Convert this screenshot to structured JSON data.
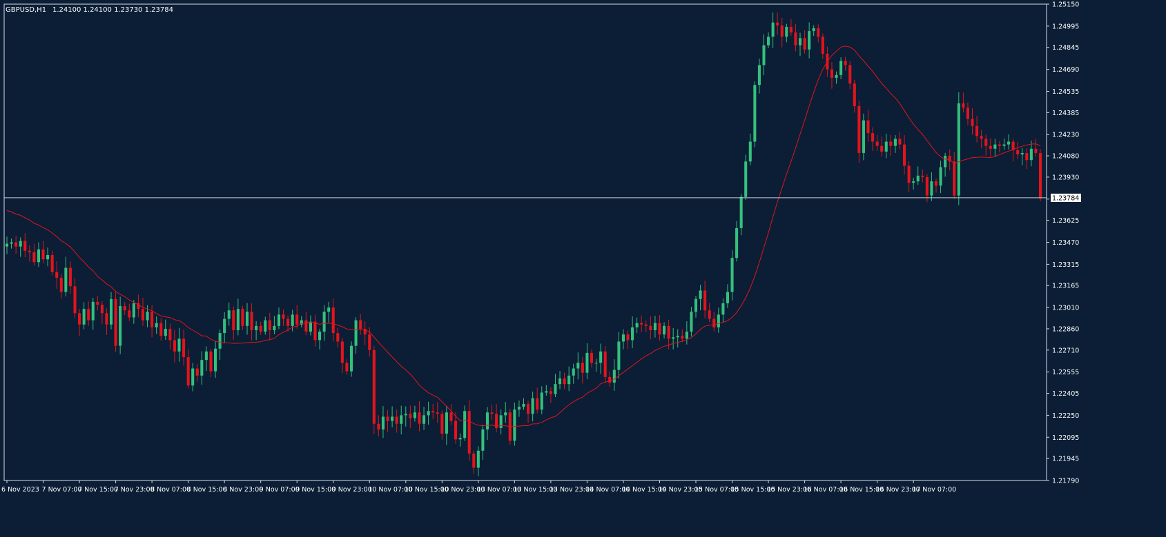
{
  "header": {
    "symbol_label": "GBPUSD,H1",
    "ohlc_label": "1.24100 1.24100 1.23730 1.23784"
  },
  "price_marker": {
    "label": "1.23784",
    "value": 1.23784
  },
  "colors": {
    "background": "#0b1e36",
    "bull": "#35c07d",
    "bear": "#e3141b",
    "ma_line": "#e3141b",
    "axis": "#d8dee6",
    "text": "#ffffff",
    "price_line": "#c8d0d8"
  },
  "chart_data": {
    "type": "candlestick",
    "title": "GBPUSD,H1",
    "ylim": [
      1.2179,
      1.2515
    ],
    "y_ticks": [
      1.2515,
      1.24995,
      1.24845,
      1.2469,
      1.24535,
      1.24385,
      1.2423,
      1.2408,
      1.2393,
      1.23775,
      1.23625,
      1.2347,
      1.23315,
      1.23165,
      1.2301,
      1.2286,
      1.2271,
      1.22555,
      1.22405,
      1.2225,
      1.22095,
      1.21945,
      1.2179
    ],
    "y_tick_labels": [
      "1.25150",
      "1.24995",
      "1.24845",
      "1.24690",
      "1.24535",
      "1.24385",
      "1.24230",
      "1.24080",
      "1.23930",
      "",
      "1.23625",
      "1.23470",
      "1.23315",
      "1.23165",
      "1.23010",
      "1.22860",
      "1.22710",
      "1.22555",
      "1.22405",
      "1.22250",
      "1.22095",
      "1.21945",
      "1.21790"
    ],
    "x_tick_labels": [
      "6 Nov 2023",
      "7 Nov 07:00",
      "7 Nov 15:00",
      "7 Nov 23:00",
      "8 Nov 07:00",
      "8 Nov 15:00",
      "8 Nov 23:00",
      "9 Nov 07:00",
      "9 Nov 15:00",
      "9 Nov 23:00",
      "10 Nov 07:00",
      "10 Nov 15:00",
      "10 Nov 23:00",
      "13 Nov 07:00",
      "13 Nov 15:00",
      "13 Nov 23:00",
      "14 Nov 07:00",
      "14 Nov 15:00",
      "14 Nov 23:00",
      "15 Nov 07:00",
      "15 Nov 15:00",
      "15 Nov 23:00",
      "16 Nov 07:00",
      "16 Nov 15:00",
      "16 Nov 23:00",
      "17 Nov 07:00"
    ],
    "x_tick_bar_index": [
      0,
      8,
      16,
      24,
      32,
      40,
      48,
      56,
      64,
      72,
      80,
      88,
      96,
      104,
      112,
      120,
      128,
      136,
      144,
      152,
      160,
      168,
      176,
      184,
      192,
      200
    ],
    "closes": [
      1.2346,
      1.2347,
      1.2344,
      1.2348,
      1.2341,
      1.234,
      1.2333,
      1.2342,
      1.2335,
      1.2338,
      1.2326,
      1.2322,
      1.2312,
      1.2329,
      1.2316,
      1.2297,
      1.2289,
      1.23,
      1.2292,
      1.2305,
      1.2303,
      1.2297,
      1.2289,
      1.2307,
      1.2274,
      1.2302,
      1.2299,
      1.2294,
      1.2304,
      1.23,
      1.2292,
      1.2298,
      1.2287,
      1.229,
      1.2281,
      1.2286,
      1.2278,
      1.227,
      1.2279,
      1.2266,
      1.2246,
      1.2258,
      1.2253,
      1.2264,
      1.227,
      1.2256,
      1.2272,
      1.2283,
      1.2293,
      1.2299,
      1.2285,
      1.23,
      1.2288,
      1.2298,
      1.2285,
      1.2288,
      1.2284,
      1.2292,
      1.2285,
      1.2288,
      1.2296,
      1.2293,
      1.2288,
      1.2296,
      1.2289,
      1.2292,
      1.2284,
      1.2291,
      1.2278,
      1.2284,
      1.2298,
      1.2301,
      1.2283,
      1.2277,
      1.2262,
      1.2256,
      1.2274,
      1.2292,
      1.2286,
      1.2282,
      1.2271,
      1.2219,
      1.2215,
      1.2224,
      1.2221,
      1.2224,
      1.2219,
      1.2225,
      1.2226,
      1.2223,
      1.2227,
      1.2219,
      1.2225,
      1.2228,
      1.2227,
      1.2226,
      1.2212,
      1.2227,
      1.2221,
      1.2208,
      1.2209,
      1.2228,
      1.2198,
      1.2188,
      1.22,
      1.2215,
      1.2227,
      1.2226,
      1.2216,
      1.2225,
      1.2227,
      1.2207,
      1.2229,
      1.2231,
      1.2233,
      1.2226,
      1.2237,
      1.2229,
      1.2241,
      1.2242,
      1.224,
      1.2247,
      1.2251,
      1.2247,
      1.2253,
      1.2258,
      1.2262,
      1.2255,
      1.2269,
      1.2262,
      1.2262,
      1.227,
      1.2252,
      1.2248,
      1.2257,
      1.2277,
      1.2282,
      1.2278,
      1.2287,
      1.229,
      1.2289,
      1.2288,
      1.2285,
      1.229,
      1.2282,
      1.2288,
      1.2279,
      1.228,
      1.2281,
      1.2279,
      1.2284,
      1.2298,
      1.2307,
      1.2313,
      1.2299,
      1.2293,
      1.2287,
      1.2296,
      1.2304,
      1.2312,
      1.2336,
      1.2357,
      1.2379,
      1.2404,
      1.2418,
      1.2458,
      1.2472,
      1.2486,
      1.2492,
      1.2502,
      1.25,
      1.2492,
      1.2499,
      1.2495,
      1.2486,
      1.2491,
      1.2483,
      1.2496,
      1.2498,
      1.2492,
      1.248,
      1.2469,
      1.2463,
      1.2465,
      1.2475,
      1.2472,
      1.2459,
      1.2443,
      1.241,
      1.2433,
      1.2424,
      1.2418,
      1.2415,
      1.2411,
      1.2418,
      1.2415,
      1.242,
      1.2416,
      1.2401,
      1.2389,
      1.239,
      1.2394,
      1.2393,
      1.238,
      1.239,
      1.2387,
      1.24,
      1.2408,
      1.2404,
      1.238,
      1.2445,
      1.2442,
      1.2434,
      1.2429,
      1.2422,
      1.242,
      1.2415,
      1.2413,
      1.2416,
      1.2415,
      1.2416,
      1.2418,
      1.2412,
      1.2409,
      1.241,
      1.2405,
      1.2413,
      1.241,
      1.2378
    ],
    "ma_period": 20
  }
}
